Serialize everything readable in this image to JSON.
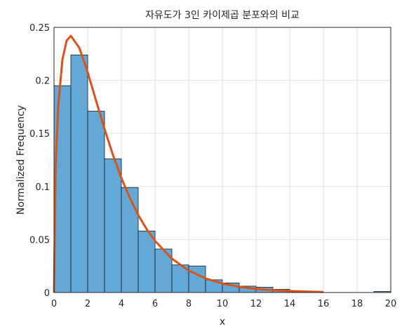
{
  "chart_data": {
    "type": "histogram",
    "title": "자유도가 3인 카이제곱 분포와의 비교",
    "xlabel": "x",
    "ylabel": "Normalized Frequency",
    "bins": [
      0,
      1,
      2,
      3,
      4,
      5,
      6,
      7,
      8,
      9,
      10,
      11,
      12,
      13,
      14,
      15,
      16,
      17,
      18,
      19,
      20
    ],
    "values": [
      0.195,
      0.224,
      0.171,
      0.126,
      0.099,
      0.058,
      0.041,
      0.026,
      0.025,
      0.012,
      0.009,
      0.006,
      0.005,
      0.003,
      0.001,
      0.0005,
      0,
      0,
      0,
      0.001
    ],
    "color": "#63a8d6",
    "curve": {
      "color": "#d95319",
      "x": [
        0,
        0.1,
        0.25,
        0.5,
        0.75,
        1,
        1.5,
        2,
        2.5,
        3,
        3.5,
        4,
        4.5,
        5,
        5.5,
        6,
        7,
        8,
        9,
        10,
        11,
        12,
        13,
        14,
        15,
        16
      ],
      "y": [
        0,
        0.12,
        0.176,
        0.2197,
        0.2375,
        0.242,
        0.2308,
        0.2076,
        0.1807,
        0.1542,
        0.1297,
        0.108,
        0.0892,
        0.0732,
        0.0598,
        0.0487,
        0.0319,
        0.0207,
        0.0133,
        0.0085,
        0.0054,
        0.0034,
        0.0022,
        0.0014,
        0.0009,
        0.0005
      ]
    },
    "xlim": [
      0,
      20
    ],
    "xticks": [
      0,
      2,
      4,
      6,
      8,
      10,
      12,
      14,
      16,
      18,
      20
    ],
    "ylim": [
      0,
      0.25
    ],
    "yticks": [
      0,
      0.05,
      0.1,
      0.15,
      0.2,
      0.25
    ],
    "grid": true
  }
}
